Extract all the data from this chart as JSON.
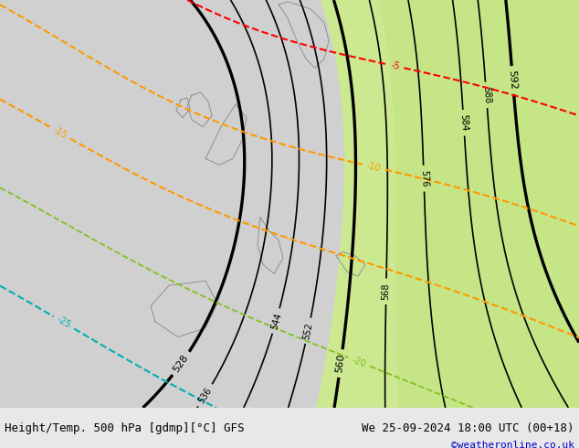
{
  "title_left": "Height/Temp. 500 hPa [gdmp][°C] GFS",
  "title_right": "We 25-09-2024 18:00 UTC (00+18)",
  "credit": "©weatheronline.co.uk",
  "height_contour_color": "#000000",
  "temp_cold_color": "#00b0b0",
  "temp_orange_color": "#ff9900",
  "temp_green_color": "#80c020",
  "temp_red_color": "#ff0000",
  "title_fontsize": 9,
  "credit_fontsize": 8,
  "figsize": [
    6.34,
    4.9
  ],
  "dpi": 100
}
